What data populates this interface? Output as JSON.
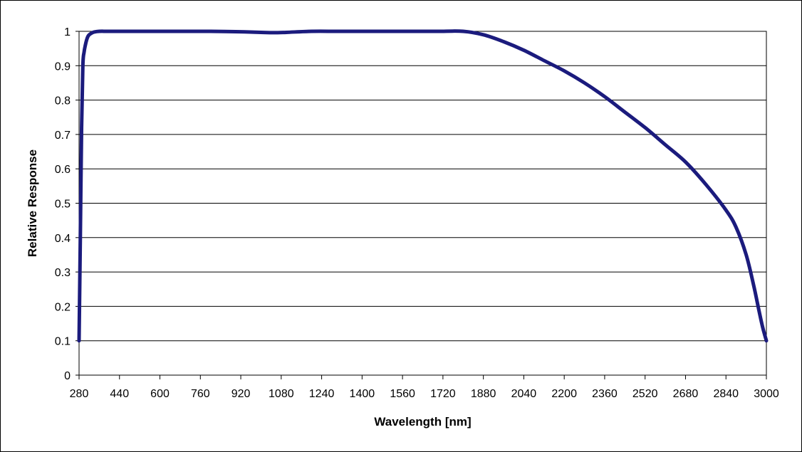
{
  "chart_data": {
    "type": "line",
    "xlabel": "Wavelength [nm]",
    "ylabel": "Relative Response",
    "xlim": [
      280,
      3000
    ],
    "ylim": [
      0,
      1
    ],
    "x_ticks": [
      280,
      440,
      600,
      760,
      920,
      1080,
      1240,
      1400,
      1560,
      1720,
      1880,
      2040,
      2200,
      2360,
      2520,
      2680,
      2840,
      3000
    ],
    "y_ticks": [
      0,
      0.1,
      0.2,
      0.3,
      0.4,
      0.5,
      0.6,
      0.7,
      0.8,
      0.9,
      1
    ],
    "y_tick_labels": [
      "0",
      "0.1",
      "0.2",
      "0.3",
      "0.4",
      "0.5",
      "0.6",
      "0.7",
      "0.8",
      "0.9",
      "1"
    ],
    "grid": "horizontal",
    "legend": "none",
    "series": [
      {
        "color": "#1b1b7d",
        "x": [
          280,
          285,
          290,
          295,
          300,
          305,
          310,
          315,
          320,
          330,
          340,
          360,
          400,
          500,
          600,
          700,
          800,
          900,
          1000,
          1050,
          1100,
          1200,
          1300,
          1400,
          1500,
          1600,
          1700,
          1800,
          1880,
          1960,
          2040,
          2120,
          2200,
          2280,
          2360,
          2440,
          2520,
          2600,
          2680,
          2760,
          2840,
          2880,
          2920,
          2950,
          2970,
          2985,
          3000
        ],
        "y": [
          0.1,
          0.4,
          0.72,
          0.9,
          0.94,
          0.96,
          0.975,
          0.985,
          0.99,
          0.995,
          0.998,
          1.0,
          1.0,
          1.0,
          1.0,
          1.0,
          1.0,
          0.999,
          0.997,
          0.996,
          0.997,
          1.0,
          1.0,
          1.0,
          1.0,
          1.0,
          1.0,
          1.0,
          0.99,
          0.97,
          0.945,
          0.915,
          0.885,
          0.85,
          0.81,
          0.765,
          0.72,
          0.67,
          0.62,
          0.555,
          0.48,
          0.43,
          0.35,
          0.26,
          0.19,
          0.14,
          0.1
        ]
      }
    ]
  }
}
